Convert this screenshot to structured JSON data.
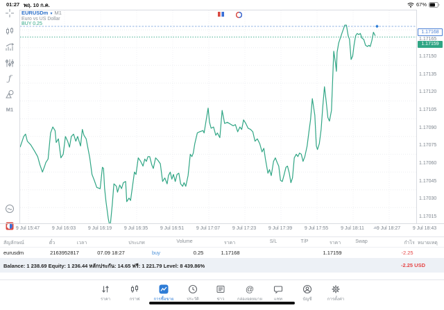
{
  "status_bar": {
    "time": "01:27",
    "date": "พฤ. 10 ก.ค.",
    "battery_percent": "67%"
  },
  "chart_header": {
    "symbol": "EURUSDm",
    "timeframe": "M1",
    "description": "Euro vs US Dollar",
    "position_label": "BUY 0.25"
  },
  "sidebar": {
    "timeframe_label": "M1"
  },
  "chart_data": {
    "type": "line",
    "title": "EURUSDm M1 line chart",
    "x_ticks": [
      "9 Jul 15:47",
      "9 Jul 16:03",
      "9 Jul 16:19",
      "9 Jul 16:35",
      "9 Jul 16:51",
      "9 Jul 17:07",
      "9 Jul 17:23",
      "9 Jul 17:39",
      "9 Jul 17:55",
      "9 Jul 18:11",
      "9 Jul 18:27",
      "9 Jul 18:43"
    ],
    "x_tick_interval_minutes": 16,
    "y_ticks": [
      1.17165,
      1.1715,
      1.17135,
      1.1712,
      1.17105,
      1.1709,
      1.17075,
      1.1706,
      1.17045,
      1.1703,
      1.17015
    ],
    "open_price": 1.17168,
    "open_price_label": "1.17168",
    "bid_price": 1.17159,
    "bid_price_label": "1.17159",
    "line_color": "#2fa584",
    "open_line_color": "#8fb2e2",
    "series": [
      {
        "name": "EURUSDm bid",
        "x_unit": "minutes since 9 Jul 15:47",
        "points": [
          [
            -3.7,
            1.17066
          ],
          [
            -2.1,
            1.17075
          ],
          [
            -1.3,
            1.17077
          ],
          [
            -0.5,
            1.17071
          ],
          [
            1.0,
            1.17068
          ],
          [
            2.6,
            1.17063
          ],
          [
            4.1,
            1.17058
          ],
          [
            5.1,
            1.17051
          ],
          [
            6.2,
            1.17045
          ],
          [
            7.2,
            1.1705
          ],
          [
            7.7,
            1.17053
          ],
          [
            8.7,
            1.17056
          ],
          [
            9.8,
            1.17078
          ],
          [
            10.8,
            1.17083
          ],
          [
            11.8,
            1.1708
          ],
          [
            12.3,
            1.1707
          ],
          [
            13.3,
            1.17073
          ],
          [
            14.4,
            1.17057
          ],
          [
            15.4,
            1.1706
          ],
          [
            16.4,
            1.17075
          ],
          [
            17.4,
            1.17071
          ],
          [
            18.2,
            1.17066
          ],
          [
            19.0,
            1.17075
          ],
          [
            20.0,
            1.17077
          ],
          [
            21.0,
            1.17071
          ],
          [
            21.8,
            1.17075
          ],
          [
            23.1,
            1.17067
          ],
          [
            23.9,
            1.17081
          ],
          [
            24.6,
            1.17076
          ],
          [
            25.6,
            1.17073
          ],
          [
            27.2,
            1.17057
          ],
          [
            28.2,
            1.17043
          ],
          [
            29.2,
            1.17038
          ],
          [
            30.3,
            1.17032
          ],
          [
            31.8,
            1.17031
          ],
          [
            32.8,
            1.17049
          ],
          [
            33.3,
            1.17048
          ],
          [
            33.8,
            1.17031
          ],
          [
            34.4,
            1.1702
          ],
          [
            35.4,
            1.17006
          ],
          [
            35.9,
            1.17001
          ],
          [
            36.4,
            1.17002
          ],
          [
            37.2,
            1.17018
          ],
          [
            37.9,
            1.17035
          ],
          [
            39.0,
            1.17033
          ],
          [
            39.5,
            1.17028
          ],
          [
            40.5,
            1.17034
          ],
          [
            41.3,
            1.17031
          ],
          [
            42.1,
            1.17036
          ],
          [
            43.1,
            1.17037
          ],
          [
            43.6,
            1.1702
          ],
          [
            44.6,
            1.17023
          ],
          [
            45.3,
            1.17021
          ],
          [
            47.0,
            1.17045
          ],
          [
            47.7,
            1.17043
          ],
          [
            48.7,
            1.17057
          ],
          [
            49.8,
            1.17054
          ],
          [
            50.8,
            1.1705
          ],
          [
            51.6,
            1.17056
          ],
          [
            52.3,
            1.17054
          ],
          [
            53.0,
            1.17058
          ],
          [
            53.8,
            1.17058
          ],
          [
            54.7,
            1.17051
          ],
          [
            55.4,
            1.17048
          ],
          [
            56.4,
            1.17057
          ],
          [
            57.4,
            1.17055
          ],
          [
            58.5,
            1.17052
          ],
          [
            59.5,
            1.17037
          ],
          [
            60.5,
            1.1704
          ],
          [
            61.5,
            1.17035
          ],
          [
            62.1,
            1.17042
          ],
          [
            62.9,
            1.17045
          ],
          [
            63.6,
            1.17039
          ],
          [
            64.3,
            1.17043
          ],
          [
            65.1,
            1.17037
          ],
          [
            65.9,
            1.17043
          ],
          [
            66.7,
            1.17044
          ],
          [
            67.5,
            1.17035
          ],
          [
            68.4,
            1.17033
          ],
          [
            69.0,
            1.17036
          ],
          [
            69.8,
            1.17033
          ],
          [
            70.8,
            1.17042
          ],
          [
            71.8,
            1.1706
          ],
          [
            72.5,
            1.17058
          ],
          [
            73.1,
            1.17061
          ],
          [
            73.8,
            1.17069
          ],
          [
            74.9,
            1.17078
          ],
          [
            75.9,
            1.17079
          ],
          [
            77.4,
            1.1708
          ],
          [
            77.9,
            1.17078
          ],
          [
            79.0,
            1.17091
          ],
          [
            79.7,
            1.17099
          ],
          [
            80.3,
            1.17087
          ],
          [
            81.0,
            1.17082
          ],
          [
            82.1,
            1.17083
          ],
          [
            83.1,
            1.17076
          ],
          [
            83.8,
            1.17078
          ],
          [
            84.9,
            1.17074
          ],
          [
            85.9,
            1.17097
          ],
          [
            87.0,
            1.17086
          ],
          [
            88.2,
            1.17087
          ],
          [
            90.8,
            1.17084
          ],
          [
            91.8,
            1.17085
          ],
          [
            92.8,
            1.17079
          ],
          [
            93.8,
            1.17083
          ],
          [
            94.6,
            1.17081
          ],
          [
            95.4,
            1.17089
          ],
          [
            96.4,
            1.17086
          ],
          [
            97.4,
            1.17082
          ],
          [
            98.5,
            1.17081
          ],
          [
            99.5,
            1.17079
          ],
          [
            100.5,
            1.17071
          ],
          [
            101.5,
            1.17073
          ],
          [
            102.6,
            1.17069
          ],
          [
            103.6,
            1.17062
          ],
          [
            104.4,
            1.17065
          ],
          [
            105.1,
            1.17056
          ],
          [
            106.2,
            1.17044
          ],
          [
            106.9,
            1.17047
          ],
          [
            107.7,
            1.17042
          ],
          [
            108.7,
            1.17054
          ],
          [
            109.5,
            1.17057
          ],
          [
            110.3,
            1.17053
          ],
          [
            111.0,
            1.1705
          ],
          [
            111.8,
            1.17038
          ],
          [
            112.6,
            1.17037
          ],
          [
            113.3,
            1.17042
          ],
          [
            114.2,
            1.17049
          ],
          [
            114.9,
            1.1705
          ],
          [
            115.7,
            1.17044
          ],
          [
            116.4,
            1.17036
          ],
          [
            117.1,
            1.1704
          ],
          [
            117.9,
            1.17057
          ],
          [
            118.8,
            1.1706
          ],
          [
            119.5,
            1.17058
          ],
          [
            120.2,
            1.17061
          ],
          [
            121.0,
            1.1706
          ],
          [
            121.8,
            1.17054
          ],
          [
            122.6,
            1.17058
          ],
          [
            123.6,
            1.17067
          ],
          [
            124.4,
            1.17079
          ],
          [
            125.1,
            1.17089
          ],
          [
            125.9,
            1.17107
          ],
          [
            127.0,
            1.17093
          ],
          [
            127.7,
            1.17067
          ],
          [
            128.2,
            1.17064
          ],
          [
            129.0,
            1.17069
          ],
          [
            129.8,
            1.17081
          ],
          [
            130.5,
            1.17099
          ],
          [
            131.3,
            1.17117
          ],
          [
            132.1,
            1.17104
          ],
          [
            132.8,
            1.17091
          ],
          [
            133.5,
            1.17088
          ],
          [
            134.4,
            1.17097
          ],
          [
            135.4,
            1.17147
          ],
          [
            136.2,
            1.17137
          ],
          [
            136.6,
            1.1713
          ],
          [
            136.9,
            1.17146
          ],
          [
            137.6,
            1.17154
          ],
          [
            139.0,
            1.17162
          ],
          [
            140.3,
            1.17169
          ],
          [
            141.0,
            1.17169
          ],
          [
            141.8,
            1.1716
          ],
          [
            142.4,
            1.17157
          ],
          [
            143.1,
            1.1714
          ],
          [
            143.8,
            1.17143
          ],
          [
            144.4,
            1.17152
          ],
          [
            145.1,
            1.1716
          ],
          [
            145.8,
            1.17162
          ],
          [
            146.5,
            1.17161
          ],
          [
            147.2,
            1.17162
          ],
          [
            147.9,
            1.17158
          ],
          [
            148.7,
            1.17157
          ],
          [
            149.5,
            1.17152
          ],
          [
            150.3,
            1.17151
          ],
          [
            151.0,
            1.17152
          ],
          [
            151.6,
            1.17151
          ],
          [
            152.3,
            1.17156
          ],
          [
            153.0,
            1.17163
          ],
          [
            153.8,
            1.1716
          ]
        ]
      }
    ]
  },
  "positions_table": {
    "headers": [
      "สัญลักษณ์",
      "ตั๋ว",
      "เวลา",
      "ประเภท",
      "Volume",
      "ราคา",
      "S/L",
      "T/P",
      "ราคา",
      "Swap",
      "กำไร",
      "หมายเหตุ"
    ],
    "row": {
      "symbol": "eurusdm",
      "ticket": "2163952817",
      "time": "07.09 18:27",
      "type": "buy",
      "volume": "0.25",
      "open_price": "1.17168",
      "sl": "",
      "tp": "",
      "price": "1.17159",
      "swap": "",
      "profit": "-2.25"
    },
    "summary": {
      "balance_line": "Balance: 1 238.69 Equity: 1 236.44 หลักประกัน: 14.65 ฟรี: 1 221.79 Level: 8 439.86%",
      "profit": "-2.25  USD"
    }
  },
  "nav": {
    "items": [
      {
        "label": "ราคา"
      },
      {
        "label": "กราฟ"
      },
      {
        "label": "การซื้อขาย"
      },
      {
        "label": "ประวัติ"
      },
      {
        "label": "ข่าว"
      },
      {
        "label": "กล่องจดหมาย"
      },
      {
        "label": "แชท"
      },
      {
        "label": "บัญชี"
      },
      {
        "label": "การตั้งค่า"
      }
    ],
    "active_index": 2
  },
  "colors": {
    "accent_blue": "#2e7cd6",
    "teal": "#2fa584",
    "red": "#e64545",
    "gray_text": "#8a9096"
  }
}
